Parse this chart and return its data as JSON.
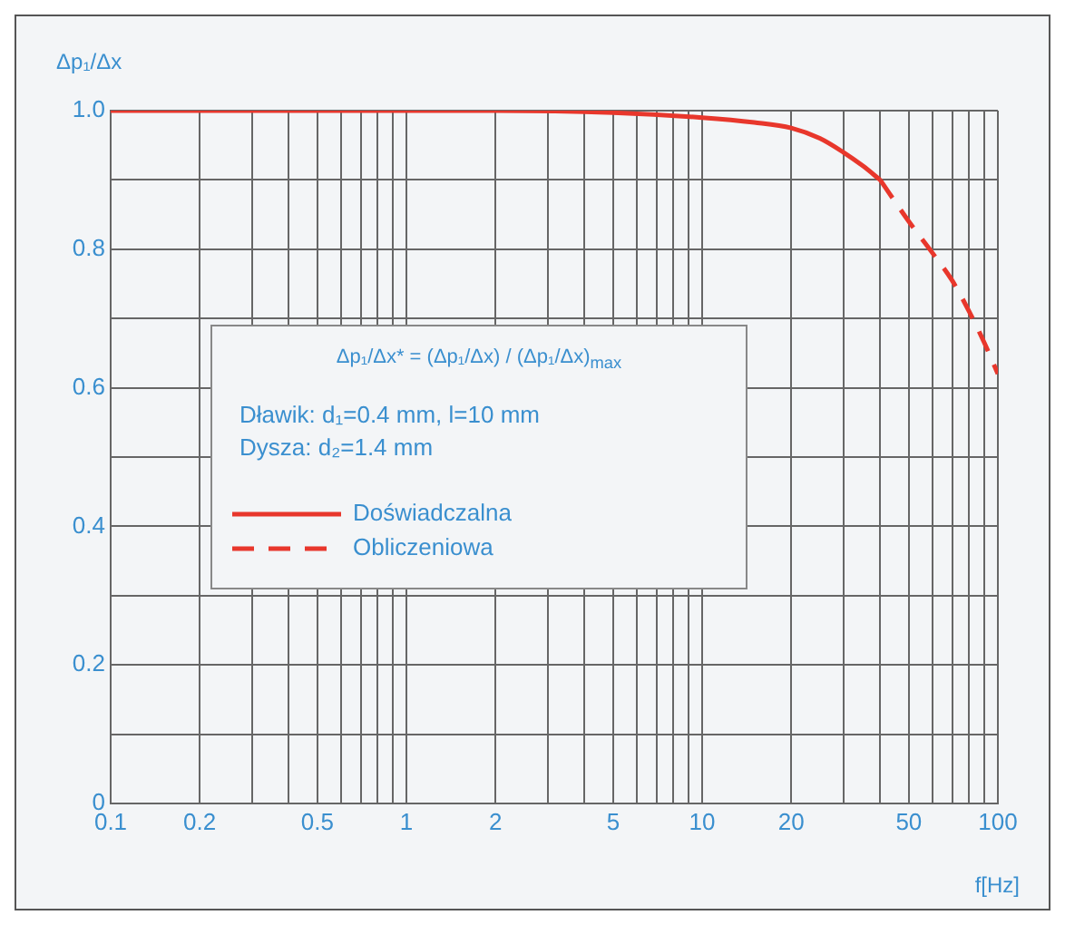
{
  "chart_data": {
    "type": "line",
    "xlabel": "f[Hz]",
    "ylabel": "Δp₁/Δx",
    "annotations": [
      "Δp₁/Δx* = (Δp₁/Δx) / (Δp₁/Δx)$_{max}$",
      "Dławik: d₁=0.4 mm, l=10 mm",
      "Dysza: d₂=1.4 mm"
    ],
    "series": [
      {
        "name": "Doświadczalna",
        "color": "#e8372c",
        "line_style": "solid",
        "x": [
          0.1,
          0.2,
          0.5,
          1,
          2,
          5,
          10,
          15,
          20,
          25,
          30,
          35,
          40
        ],
        "values": [
          1,
          1,
          1,
          1,
          1,
          0.997,
          0.99,
          0.983,
          0.975,
          0.96,
          0.94,
          0.92,
          0.9
        ]
      },
      {
        "name": "Obliczeniowa",
        "color": "#e8372c",
        "line_style": "dashed",
        "x": [
          40,
          50,
          60,
          70,
          80,
          90,
          100
        ],
        "values": [
          0.9,
          0.84,
          0.795,
          0.755,
          0.71,
          0.665,
          0.62
        ]
      }
    ],
    "log": "x",
    "xlim": [
      0.1,
      100
    ],
    "xticks": [
      0.1,
      0.2,
      {
        "value": 0.3,
        "label": null
      },
      {
        "value": 0.4,
        "label": null
      },
      0.5,
      {
        "value": 0.6,
        "label": null
      },
      {
        "value": 0.7,
        "label": null
      },
      {
        "value": 0.8,
        "label": null
      },
      {
        "value": 0.9,
        "label": null
      },
      1,
      2,
      {
        "value": 3,
        "label": null
      },
      {
        "value": 4,
        "label": null
      },
      5,
      {
        "value": 6,
        "label": null
      },
      {
        "value": 7,
        "label": null
      },
      {
        "value": 8,
        "label": null
      },
      {
        "value": 9,
        "label": null
      },
      10,
      20,
      {
        "value": 30,
        "label": null
      },
      {
        "value": 40,
        "label": null
      },
      50,
      {
        "value": 60,
        "label": null
      },
      {
        "value": 70,
        "label": null
      },
      {
        "value": 80,
        "label": null
      },
      {
        "value": 90,
        "label": null
      },
      100
    ],
    "ylim": [
      0,
      1
    ],
    "yticks": [
      0,
      {
        "value": 0.1,
        "label": null
      },
      0.2,
      {
        "value": 0.3,
        "label": null
      },
      0.4,
      {
        "value": 0.5,
        "label": null
      },
      0.6,
      {
        "value": 0.7,
        "label": null
      },
      0.8,
      {
        "value": 0.9,
        "label": null
      },
      {
        "value": 1,
        "label": "1.0"
      }
    ],
    "grid": true,
    "legend": "left",
    "marker": "none"
  }
}
